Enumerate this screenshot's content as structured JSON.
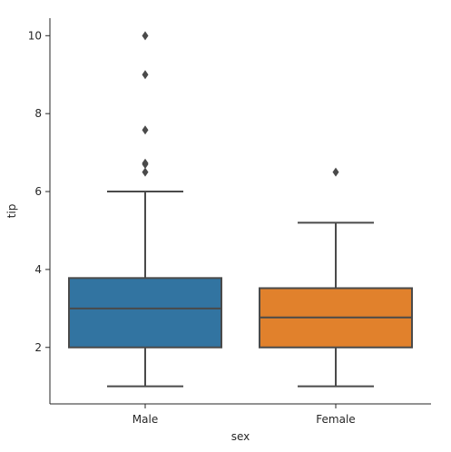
{
  "chart_data": {
    "type": "boxplot",
    "xlabel": "sex",
    "ylabel": "tip",
    "ylim": [
      0.55,
      10.45
    ],
    "yticks": [
      2,
      4,
      6,
      8,
      10
    ],
    "categories": [
      "Male",
      "Female"
    ],
    "boxes": [
      {
        "category": "Male",
        "color": "#3274a1",
        "whisker_low": 1.0,
        "q1": 2.0,
        "median": 3.0,
        "q3": 3.78,
        "whisker_high": 6.0,
        "outliers": [
          10.0,
          9.0,
          7.58,
          6.73,
          6.7,
          6.5
        ]
      },
      {
        "category": "Female",
        "color": "#e1812c",
        "whisker_low": 1.0,
        "q1": 2.0,
        "median": 2.77,
        "q3": 3.52,
        "whisker_high": 5.2,
        "outliers": [
          6.5
        ]
      }
    ],
    "line_color": "#4a4a4a",
    "grid": false
  }
}
